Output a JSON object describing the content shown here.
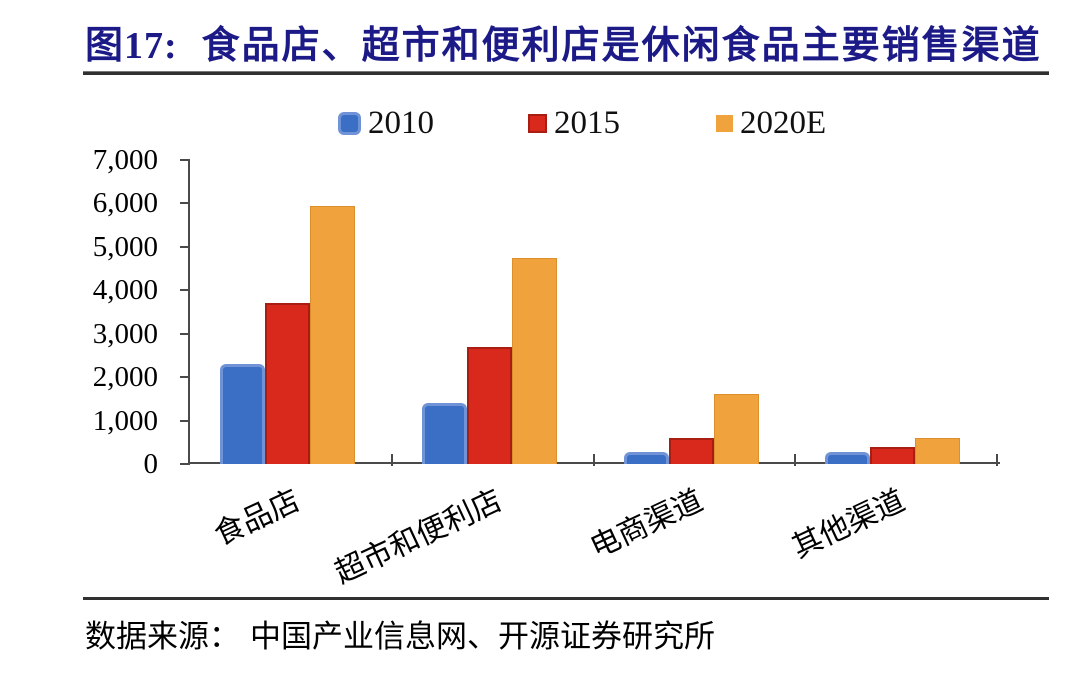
{
  "figure": {
    "title_prefix": "图17:",
    "title_text": "食品店、超市和便利店是休闲食品主要销售渠道",
    "title_color": "#1c1a86",
    "source_label": "数据来源：",
    "source_text": "中国产业信息网、开源证券研究所"
  },
  "chart_data": {
    "type": "bar",
    "categories": [
      "食品店",
      "超市和便利店",
      "电商渠道",
      "其他渠道"
    ],
    "series": [
      {
        "name": "2010",
        "color": "#3b6ec5",
        "edge": "#6f93d6",
        "values": [
          2300,
          1400,
          270,
          270
        ]
      },
      {
        "name": "2015",
        "color": "#d9291d",
        "edge": "#a81e13",
        "values": [
          3700,
          2700,
          600,
          380
        ]
      },
      {
        "name": "2020E",
        "color": "#f0a23c",
        "edge": "#dd8f2e",
        "values": [
          5950,
          4750,
          1620,
          600
        ]
      }
    ],
    "ylim": [
      0,
      7000
    ],
    "ytick_step": 1000,
    "ytick_labels": [
      "0",
      "1,000",
      "2,000",
      "3,000",
      "4,000",
      "5,000",
      "6,000",
      "7,000"
    ],
    "legend_position": "top",
    "grid": false
  }
}
